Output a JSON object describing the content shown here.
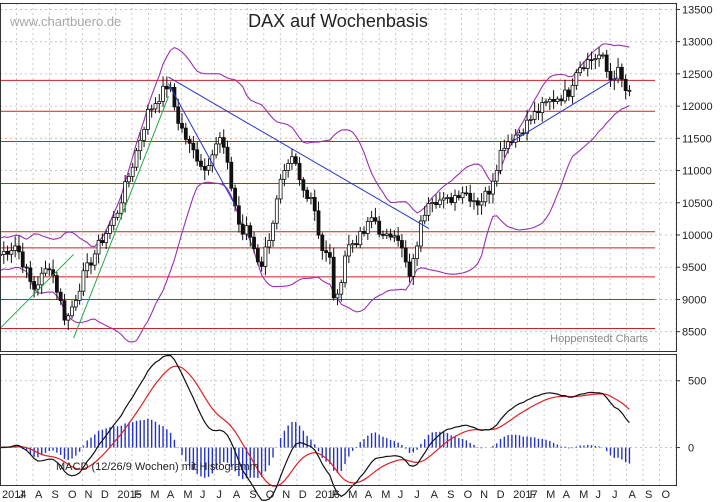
{
  "chart_data": [
    {
      "type": "candlestick",
      "title": "DAX auf Wochenbasis",
      "watermark": "www.chartbuero.de",
      "source_label": "Hoppenstedt Charts",
      "ylim": [
        8200,
        13600
      ],
      "y_ticks": [
        8500,
        9000,
        9500,
        10000,
        10500,
        11000,
        11500,
        12000,
        12500,
        13000,
        13500
      ],
      "x_months": [
        "2014",
        "J",
        "A",
        "S",
        "O",
        "N",
        "D",
        "2015",
        "F",
        "M",
        "A",
        "M",
        "J",
        "J",
        "A",
        "S",
        "O",
        "N",
        "D",
        "2016",
        "F",
        "M",
        "A",
        "M",
        "J",
        "J",
        "A",
        "S",
        "O",
        "N",
        "D",
        "2017",
        "F",
        "M",
        "A",
        "M",
        "J",
        "J",
        "A",
        "S",
        "O"
      ],
      "x_start": "2014-06-01",
      "horizontal_levels": [
        8550,
        9000,
        9350,
        9800,
        10050,
        10800,
        11450,
        11920,
        12400
      ],
      "close_trend": [
        [
          "2014-06-01",
          9700
        ],
        [
          "2014-07-01",
          9850
        ],
        [
          "2014-08-01",
          9150
        ],
        [
          "2014-09-01",
          9550
        ],
        [
          "2014-10-01",
          8650
        ],
        [
          "2014-10-15",
          8950
        ],
        [
          "2014-11-01",
          9350
        ],
        [
          "2014-12-01",
          9850
        ],
        [
          "2015-01-01",
          10300
        ],
        [
          "2015-02-01",
          11100
        ],
        [
          "2015-03-01",
          11900
        ],
        [
          "2015-04-08",
          12350
        ],
        [
          "2015-04-25",
          11800
        ],
        [
          "2015-05-15",
          11400
        ],
        [
          "2015-06-01",
          11200
        ],
        [
          "2015-06-15",
          11000
        ],
        [
          "2015-07-01",
          11400
        ],
        [
          "2015-07-15",
          11500
        ],
        [
          "2015-08-01",
          10800
        ],
        [
          "2015-08-20",
          10000
        ],
        [
          "2015-09-01",
          10100
        ],
        [
          "2015-09-25",
          9500
        ],
        [
          "2015-10-15",
          10100
        ],
        [
          "2015-11-01",
          10800
        ],
        [
          "2015-11-25",
          11200
        ],
        [
          "2015-12-10",
          10700
        ],
        [
          "2015-12-30",
          10600
        ],
        [
          "2016-01-15",
          9800
        ],
        [
          "2016-02-01",
          9600
        ],
        [
          "2016-02-10",
          8800
        ],
        [
          "2016-03-01",
          9800
        ],
        [
          "2016-04-01",
          10000
        ],
        [
          "2016-04-20",
          10300
        ],
        [
          "2016-05-10",
          9900
        ],
        [
          "2016-06-01",
          10100
        ],
        [
          "2016-06-27",
          9300
        ],
        [
          "2016-07-15",
          10100
        ],
        [
          "2016-08-01",
          10600
        ],
        [
          "2016-09-01",
          10500
        ],
        [
          "2016-10-01",
          10700
        ],
        [
          "2016-11-01",
          10500
        ],
        [
          "2016-11-20",
          10700
        ],
        [
          "2016-12-15",
          11400
        ],
        [
          "2017-01-15",
          11600
        ],
        [
          "2017-02-15",
          11900
        ],
        [
          "2017-03-15",
          12100
        ],
        [
          "2017-04-15",
          12200
        ],
        [
          "2017-05-01",
          12600
        ],
        [
          "2017-05-20",
          12700
        ],
        [
          "2017-06-15",
          12800
        ],
        [
          "2017-06-30",
          12400
        ],
        [
          "2017-07-15",
          12550
        ],
        [
          "2017-08-01",
          12200
        ],
        [
          "2017-08-10",
          12150
        ]
      ],
      "trendlines": [
        {
          "color": "#2233cc",
          "points": [
            [
              "2015-04-08",
              12450
            ],
            [
              "2016-08-01",
              10100
            ]
          ]
        },
        {
          "color": "#2233cc",
          "points": [
            [
              "2015-04-08",
              12350
            ],
            [
              "2015-08-10",
              10450
            ]
          ]
        },
        {
          "color": "#2233cc",
          "points": [
            [
              "2017-01-01",
              11450
            ],
            [
              "2017-07-15",
              12450
            ]
          ]
        },
        {
          "color": "#22aa44",
          "points": [
            [
              "2014-06-01",
              8550
            ],
            [
              "2014-10-15",
              9700
            ]
          ]
        },
        {
          "color": "#22aa44",
          "points": [
            [
              "2014-10-15",
              8400
            ],
            [
              "2015-04-08",
              12150
            ]
          ]
        }
      ],
      "colors": {
        "bollinger": "#9b30b0",
        "level_line": "#cc2222",
        "grid": "#bbbbbb",
        "candle": "#111111"
      }
    },
    {
      "type": "macd",
      "label": "MACD (12/26/9 Wochen) mit Histogramm",
      "ylim": [
        -280,
        700
      ],
      "y_ticks": [
        0,
        500
      ],
      "colors": {
        "macd": "#111111",
        "signal": "#dd2222",
        "histogram": "#2233cc"
      }
    }
  ]
}
